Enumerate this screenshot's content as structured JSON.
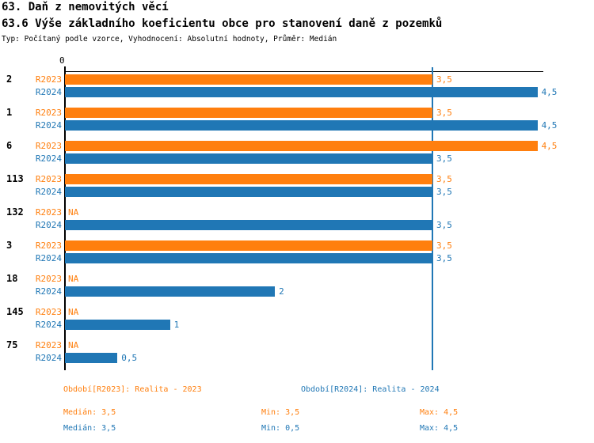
{
  "title": "63. Daň z nemovitých věcí",
  "subtitle": "63.6 Výše základního koeficientu obce pro stanovení daně z pozemků",
  "meta": "Typ: Počítaný podle vzorce, Vyhodnocení: Absolutní hodnoty, Průměr: Medián",
  "colors": {
    "r2023": "#FF7F0E",
    "r2024": "#2077B5",
    "axis": "#000000",
    "median_line": "#2077B5"
  },
  "axis": {
    "zero_label": "0"
  },
  "chart_data": {
    "type": "bar",
    "orientation": "horizontal",
    "categories": [
      "2",
      "1",
      "6",
      "113",
      "132",
      "3",
      "18",
      "145",
      "75"
    ],
    "series": [
      {
        "name": "R2023",
        "color": "#FF7F0E",
        "values": [
          3.5,
          3.5,
          4.5,
          3.5,
          null,
          3.5,
          null,
          null,
          null
        ],
        "labels": [
          "3,5",
          "3,5",
          "4,5",
          "3,5",
          "NA",
          "3,5",
          "NA",
          "NA",
          "NA"
        ]
      },
      {
        "name": "R2024",
        "color": "#2077B5",
        "values": [
          4.5,
          4.5,
          3.5,
          3.5,
          3.5,
          3.5,
          2,
          1,
          0.5
        ],
        "labels": [
          "4,5",
          "4,5",
          "3,5",
          "3,5",
          "3,5",
          "3,5",
          "2",
          "1",
          "0,5"
        ]
      }
    ],
    "na_label": "NA",
    "xlim": [
      0,
      4.56
    ],
    "median_line_value": 3.5,
    "grid": false,
    "legend_position": "bottom"
  },
  "legend": {
    "r2023": "Období[R2023]: Realita - 2023",
    "r2024": "Období[R2024]: Realita - 2024"
  },
  "stats": {
    "r2023": {
      "median": "Medián: 3,5",
      "min": "Min: 3,5",
      "max": "Max: 4,5"
    },
    "r2024": {
      "median": "Medián: 3,5",
      "min": "Min: 0,5",
      "max": "Max: 4,5"
    }
  }
}
